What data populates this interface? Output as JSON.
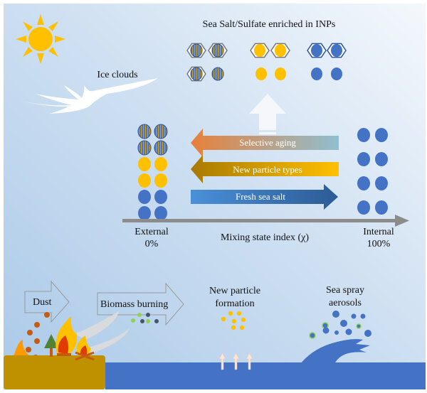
{
  "title": "Sea Salt/Sulfate enriched in INPs",
  "ice_clouds": "Ice clouds",
  "processes": [
    {
      "label": "Selective aging",
      "direction": "left",
      "colors": [
        "#e8803a",
        "#8fbfd0"
      ]
    },
    {
      "label": "New particle types",
      "direction": "left",
      "colors": [
        "#a87a00",
        "#ffc000"
      ]
    },
    {
      "label": "Fresh sea salt",
      "direction": "right",
      "colors": [
        "#4a90d9",
        "#2c5b94"
      ]
    }
  ],
  "axis": {
    "label": "Mixing state index (χ)",
    "left_label": "External",
    "left_value": "0%",
    "right_label": "Internal",
    "right_value": "100%"
  },
  "sources": {
    "dust": "Dust",
    "biomass": "Biomass burning",
    "npf_line1": "New particle",
    "npf_line2": "formation",
    "ssa_line1": "Sea spray",
    "ssa_line2": "aerosols"
  },
  "colors": {
    "sea_salt": "#4472c4",
    "sulfate": "#ffc000",
    "dust": "#c55a11",
    "ground": "#bf9000",
    "ocean": "#4472c4"
  }
}
